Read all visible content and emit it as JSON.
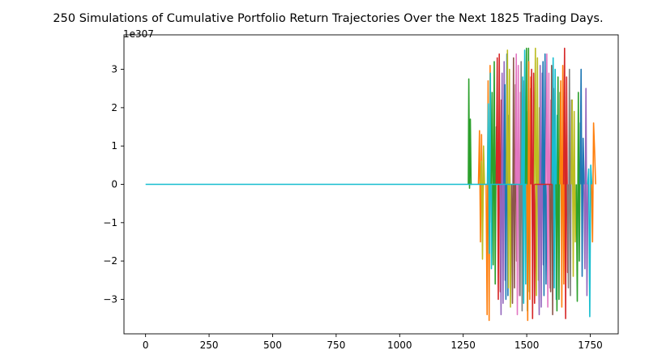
{
  "chart_data": {
    "type": "line",
    "title": "250 Simulations of Cumulative Portfolio Return Trajectories Over the Next 1825 Trading Days.",
    "xlabel": "",
    "ylabel": "",
    "y_offset_label": "1e307",
    "xlim": [
      -85,
      1860
    ],
    "ylim": [
      -3.9,
      3.9
    ],
    "x_ticks": [
      0,
      250,
      500,
      750,
      1000,
      1250,
      1500,
      1750
    ],
    "x_tick_labels": [
      "0",
      "250",
      "500",
      "750",
      "1000",
      "1250",
      "1500",
      "1750"
    ],
    "y_ticks": [
      -3,
      -2,
      -1,
      0,
      1,
      2,
      3
    ],
    "y_tick_labels": [
      "−3",
      "−2",
      "−1",
      "0",
      "1",
      "2",
      "3"
    ],
    "grid": false,
    "legend": false,
    "n_simulations": 250,
    "n_days": 1825,
    "baseline": {
      "x_start": 0,
      "x_end": 1500,
      "y": 0
    },
    "divergence_x_range": [
      1270,
      1770
    ],
    "y_extent": [
      -3.6,
      3.6
    ],
    "colors": [
      "#1f77b4",
      "#ff7f0e",
      "#2ca02c",
      "#d62728",
      "#9467bd",
      "#8c564b",
      "#e377c2",
      "#7f7f7f",
      "#bcbd22",
      "#17becf"
    ],
    "series": [
      {
        "color": "#2ca02c",
        "x": [
          1270,
          1272,
          1275,
          1278,
          1281,
          1284
        ],
        "y": [
          0,
          2.75,
          -0.1,
          1.7,
          0,
          0
        ]
      },
      {
        "color": "#ff7f0e",
        "x": [
          1310,
          1314,
          1318,
          1322,
          1326,
          1330,
          1334
        ],
        "y": [
          0,
          1.4,
          -1.5,
          1.3,
          -1.2,
          0.2,
          0
        ]
      },
      {
        "color": "#bcbd22",
        "x": [
          1318,
          1322,
          1326,
          1330,
          1334
        ],
        "y": [
          0,
          0.6,
          -1.95,
          1.0,
          0
        ]
      },
      {
        "color": "#ff7f0e",
        "x": [
          1340,
          1344,
          1348,
          1352,
          1356,
          1360,
          1364
        ],
        "y": [
          0,
          -3.4,
          2.7,
          -3.55,
          3.1,
          -1.0,
          0
        ]
      },
      {
        "color": "#17becf",
        "x": [
          1345,
          1349,
          1353,
          1357,
          1361,
          1365
        ],
        "y": [
          0,
          2.1,
          -1.8,
          2.9,
          -2.2,
          0
        ]
      },
      {
        "color": "#2ca02c",
        "x": [
          1360,
          1364,
          1368,
          1372,
          1376,
          1380,
          1384
        ],
        "y": [
          0,
          2.4,
          -2.1,
          3.2,
          -2.6,
          1.5,
          0
        ]
      },
      {
        "color": "#d62728",
        "x": [
          1380,
          1384,
          1388,
          1392,
          1396,
          1400,
          1404,
          1408
        ],
        "y": [
          0,
          3.3,
          -3.0,
          3.4,
          -2.8,
          2.2,
          -1.0,
          0
        ]
      },
      {
        "color": "#9467bd",
        "x": [
          1395,
          1399,
          1403,
          1407,
          1411,
          1415,
          1419
        ],
        "y": [
          0,
          -3.4,
          2.9,
          -3.1,
          3.2,
          -2.5,
          0
        ]
      },
      {
        "color": "#1f77b4",
        "x": [
          1410,
          1414,
          1418,
          1422,
          1426,
          1430,
          1434
        ],
        "y": [
          0,
          2.6,
          -3.0,
          3.4,
          -2.9,
          1.8,
          0
        ]
      },
      {
        "color": "#bcbd22",
        "x": [
          1420,
          1424,
          1428,
          1432,
          1436,
          1440
        ],
        "y": [
          0,
          3.5,
          -2.7,
          3.0,
          -3.2,
          0
        ]
      },
      {
        "color": "#8c564b",
        "x": [
          1440,
          1444,
          1448,
          1452,
          1456,
          1460,
          1464
        ],
        "y": [
          0,
          -3.1,
          3.3,
          -2.7,
          2.6,
          -2.0,
          0
        ]
      },
      {
        "color": "#e377c2",
        "x": [
          1455,
          1459,
          1463,
          1467,
          1471,
          1475,
          1479
        ],
        "y": [
          0,
          3.4,
          -3.4,
          3.1,
          -2.9,
          2.4,
          0
        ]
      },
      {
        "color": "#7f7f7f",
        "x": [
          1470,
          1474,
          1478,
          1482,
          1486,
          1490
        ],
        "y": [
          0,
          -2.9,
          3.2,
          -3.3,
          2.7,
          0
        ]
      },
      {
        "color": "#17becf",
        "x": [
          1480,
          1484,
          1488,
          1492,
          1496,
          1500,
          1504
        ],
        "y": [
          0,
          2.8,
          -3.1,
          3.5,
          -2.6,
          1.9,
          0
        ]
      },
      {
        "color": "#2ca02c",
        "x": [
          1495,
          1499,
          1503,
          1507,
          1511,
          1515,
          1519
        ],
        "y": [
          0,
          3.55,
          -3.3,
          3.55,
          -2.8,
          2.5,
          0
        ]
      },
      {
        "color": "#ff7f0e",
        "x": [
          1500,
          1504,
          1508,
          1512,
          1516,
          1520
        ],
        "y": [
          0,
          -3.55,
          3.2,
          -3.0,
          2.8,
          0
        ]
      },
      {
        "color": "#d62728",
        "x": [
          1515,
          1519,
          1523,
          1527,
          1531,
          1535
        ],
        "y": [
          0,
          3.0,
          -3.5,
          2.9,
          -3.1,
          0
        ]
      },
      {
        "color": "#bcbd22",
        "x": [
          1530,
          1534,
          1538,
          1542,
          1546,
          1550,
          1554
        ],
        "y": [
          0,
          3.55,
          -2.9,
          3.3,
          -2.5,
          2.0,
          0
        ]
      },
      {
        "color": "#9467bd",
        "x": [
          1545,
          1549,
          1553,
          1557,
          1561,
          1565,
          1569
        ],
        "y": [
          0,
          -3.4,
          3.1,
          -3.2,
          2.9,
          -2.1,
          0
        ]
      },
      {
        "color": "#1f77b4",
        "x": [
          1560,
          1564,
          1568,
          1572,
          1576,
          1580
        ],
        "y": [
          0,
          3.2,
          -2.9,
          3.4,
          -2.6,
          0
        ]
      },
      {
        "color": "#e377c2",
        "x": [
          1575,
          1579,
          1583,
          1587,
          1591,
          1595,
          1599
        ],
        "y": [
          0,
          3.4,
          -3.2,
          2.9,
          -2.7,
          2.2,
          0
        ]
      },
      {
        "color": "#8c564b",
        "x": [
          1590,
          1594,
          1598,
          1602,
          1606,
          1610
        ],
        "y": [
          0,
          -2.8,
          3.1,
          -3.4,
          2.5,
          0
        ]
      },
      {
        "color": "#17becf",
        "x": [
          1600,
          1604,
          1608,
          1612,
          1616,
          1620,
          1624
        ],
        "y": [
          0,
          3.3,
          -2.7,
          3.0,
          -3.0,
          1.8,
          0
        ]
      },
      {
        "color": "#2ca02c",
        "x": [
          1615,
          1619,
          1623,
          1627,
          1631,
          1635
        ],
        "y": [
          0,
          -3.3,
          2.8,
          -3.0,
          2.4,
          0
        ]
      },
      {
        "color": "#ff7f0e",
        "x": [
          1630,
          1634,
          1638,
          1642,
          1646,
          1650,
          1654
        ],
        "y": [
          0,
          2.7,
          -3.2,
          3.1,
          -2.6,
          1.6,
          0
        ]
      },
      {
        "color": "#d62728",
        "x": [
          1645,
          1649,
          1653,
          1657,
          1661,
          1665
        ],
        "y": [
          0,
          3.55,
          -3.5,
          2.8,
          -2.3,
          0
        ]
      },
      {
        "color": "#7f7f7f",
        "x": [
          1660,
          1664,
          1668,
          1672,
          1676,
          1680
        ],
        "y": [
          0,
          -2.7,
          3.0,
          -2.9,
          2.2,
          0
        ]
      },
      {
        "color": "#bcbd22",
        "x": [
          1675,
          1679,
          1683,
          1687,
          1691,
          1695
        ],
        "y": [
          0,
          2.2,
          -2.4,
          1.9,
          -1.5,
          0
        ]
      },
      {
        "color": "#2ca02c",
        "x": [
          1695,
          1699,
          1703,
          1707,
          1711,
          1715
        ],
        "y": [
          0,
          -3.05,
          2.4,
          -2.0,
          1.6,
          0
        ]
      },
      {
        "color": "#1f77b4",
        "x": [
          1710,
          1714,
          1718,
          1722,
          1726
        ],
        "y": [
          0,
          3.0,
          -2.4,
          1.2,
          0
        ]
      },
      {
        "color": "#9467bd",
        "x": [
          1725,
          1729,
          1733,
          1737,
          1741
        ],
        "y": [
          0,
          -2.2,
          2.5,
          -2.9,
          0
        ]
      },
      {
        "color": "#17becf",
        "x": [
          1740,
          1744,
          1748,
          1752,
          1756
        ],
        "y": [
          0,
          0.4,
          -3.45,
          0.5,
          0
        ]
      },
      {
        "color": "#ff7f0e",
        "x": [
          1755,
          1759,
          1763,
          1767,
          1771
        ],
        "y": [
          0,
          -1.5,
          1.6,
          0.9,
          0
        ]
      },
      {
        "color": "#d62728",
        "x": [
          1530,
          1600
        ],
        "y": [
          0,
          0
        ]
      },
      {
        "color": "#17becf",
        "x": [
          0,
          1500
        ],
        "y": [
          0,
          0
        ]
      }
    ]
  }
}
